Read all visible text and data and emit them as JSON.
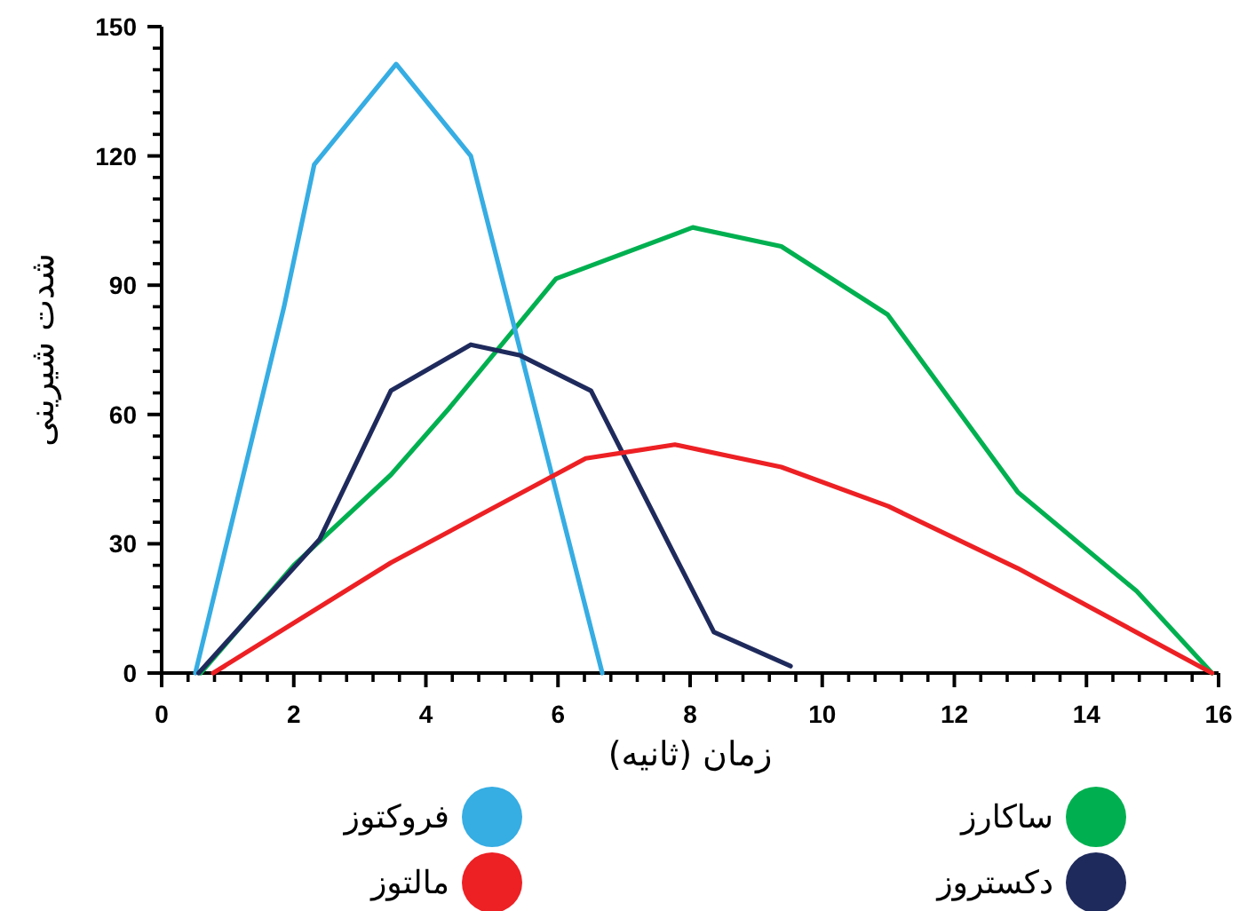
{
  "chart_data": {
    "type": "line",
    "xlabel": "زمان (ثانیه)",
    "ylabel": "شدت شیرینی",
    "xlim": [
      0,
      16
    ],
    "ylim": [
      0,
      150
    ],
    "xticks": [
      0,
      2,
      4,
      6,
      8,
      10,
      12,
      14,
      16
    ],
    "yticks": [
      0,
      30,
      60,
      90,
      120,
      150
    ],
    "legend": "bottom",
    "grid": false,
    "marker": "none",
    "line_style": "solid",
    "series": [
      {
        "name": "ساکارز",
        "color": "#00b050",
        "x": [
          0.59,
          2.0,
          3.47,
          4.35,
          5.97,
          8.04,
          9.38,
          10.99,
          12.96,
          14.76,
          15.9
        ],
        "values": [
          0,
          25,
          46,
          61.4,
          91.5,
          103.4,
          99,
          83.2,
          42,
          19,
          0
        ]
      },
      {
        "name": "فروکتوز",
        "color": "#36ade3",
        "x": [
          0.51,
          1.85,
          2.31,
          3.55,
          4.68,
          6.67
        ],
        "values": [
          0,
          84.8,
          118,
          141.3,
          120,
          0
        ]
      },
      {
        "name": "دکستروز",
        "color": "#1f2a5c",
        "x": [
          0.56,
          2.39,
          3.47,
          4.68,
          5.43,
          6.5,
          7.77,
          8.36,
          9.52
        ],
        "values": [
          0,
          31,
          65.5,
          76.2,
          73.7,
          65.5,
          27.2,
          9.5,
          1.6
        ]
      },
      {
        "name": "مالتوز",
        "color": "#ed2024",
        "x": [
          0.78,
          3.47,
          6.42,
          7.77,
          9.38,
          11,
          12.96,
          15.9
        ],
        "values": [
          0,
          25.6,
          49.8,
          53,
          47.8,
          38.7,
          24.3,
          0
        ]
      }
    ]
  }
}
